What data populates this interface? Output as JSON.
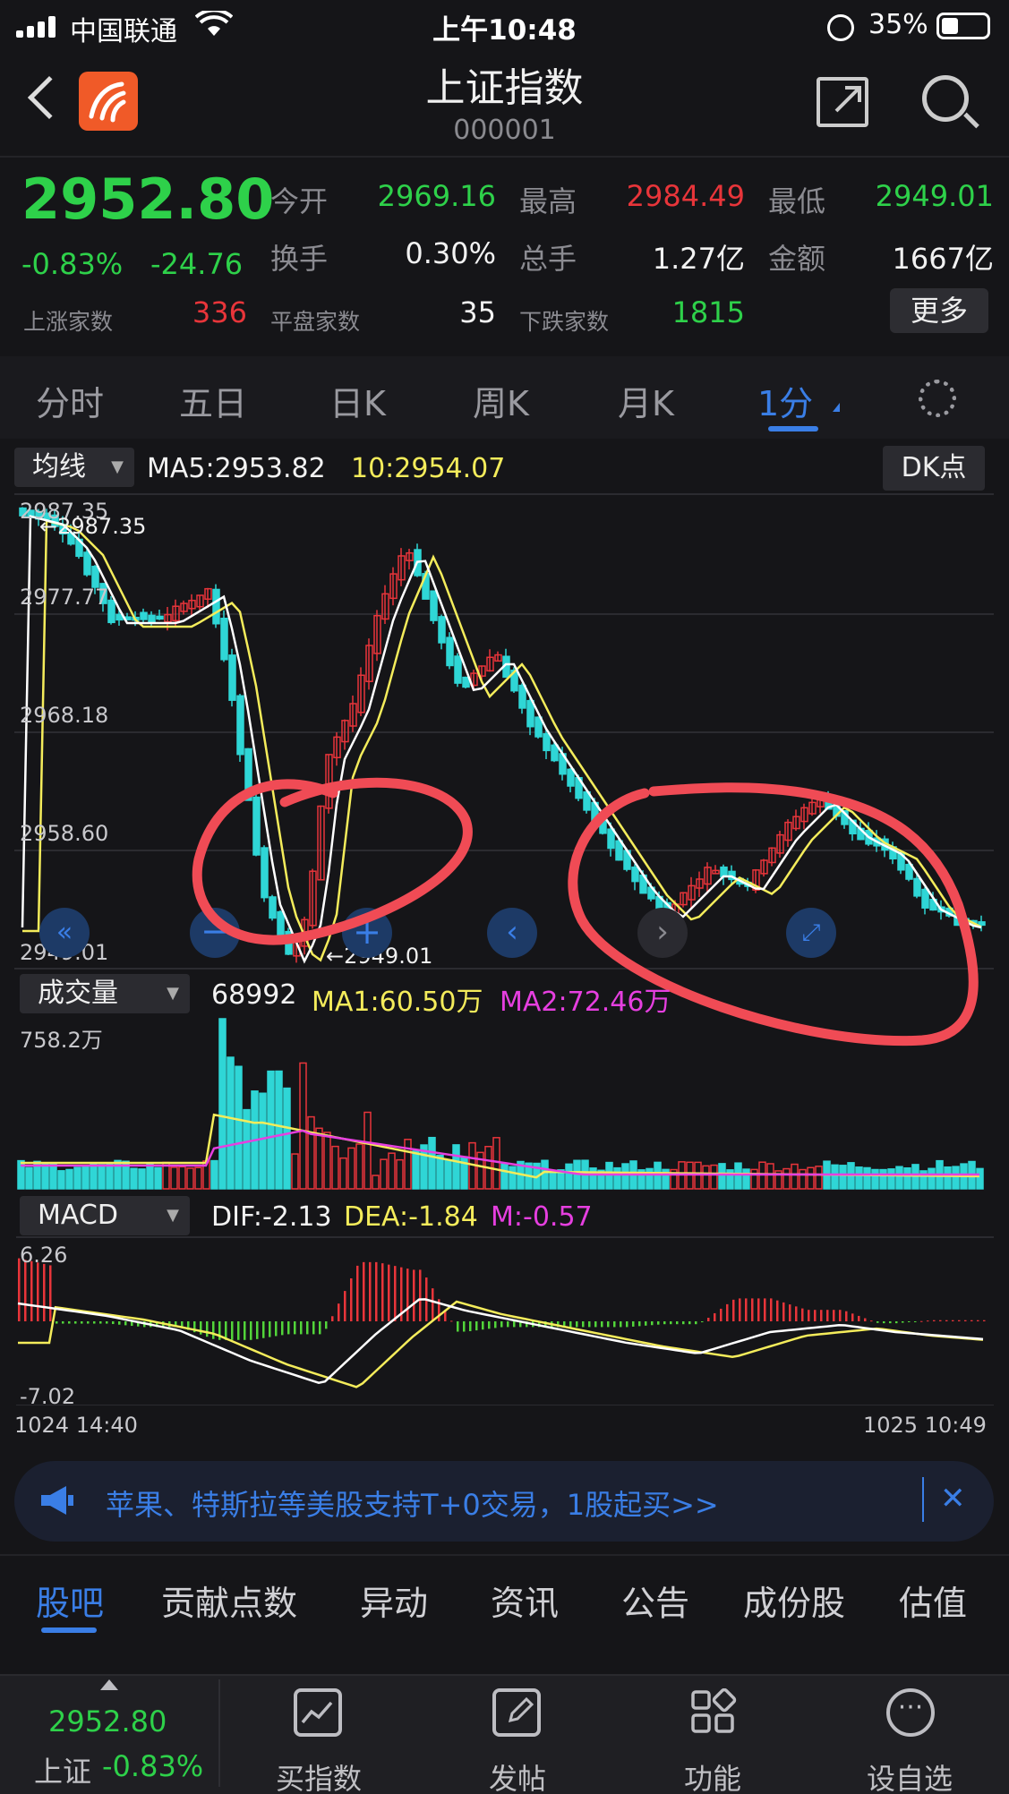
{
  "status_bar": {
    "carrier": "中国联通",
    "time": "上午10:48",
    "battery": "35%"
  },
  "header": {
    "title": "上证指数",
    "code": "000001",
    "icons": [
      "back-icon",
      "app-logo",
      "share-icon",
      "search-icon"
    ]
  },
  "quote": {
    "price": "2952.80",
    "change_pct": "-0.83%",
    "change": "-24.76",
    "open_label": "今开",
    "open": "2969.16",
    "high_label": "最高",
    "high": "2984.49",
    "low_label": "最低",
    "low": "2949.01",
    "turnover_label": "换手",
    "turnover": "0.30%",
    "volume_label": "总手",
    "volume": "1.27亿",
    "amount_label": "金额",
    "amount": "1667亿",
    "up_label": "上涨家数",
    "up": "336",
    "flat_label": "平盘家数",
    "flat": "35",
    "down_label": "下跌家数",
    "down": "1815",
    "more": "更多"
  },
  "tabs": [
    "分时",
    "五日",
    "日K",
    "周K",
    "月K",
    "1分"
  ],
  "active_tab": "1分",
  "price_chart": {
    "indicator": "均线",
    "ma5": "MA5:2953.82",
    "ma10": "10:2954.07",
    "dk_button": "DK点",
    "y_labels": [
      "2987.35",
      "2977.77",
      "2968.18",
      "2958.60",
      "2949.01"
    ],
    "max_annot": "2987.35",
    "min_annot": "2949.01"
  },
  "volume_chart": {
    "indicator": "成交量",
    "vol": "68992",
    "ma1": "MA1:60.50万",
    "ma2": "MA2:72.46万",
    "ymax": "758.2万"
  },
  "macd_chart": {
    "indicator": "MACD",
    "dif": "DIF:-2.13",
    "dea": "DEA:-1.84",
    "m": "M:-0.57",
    "ymax": "6.26",
    "ymin": "-7.02",
    "x_start": "1024 14:40",
    "x_end": "1025 10:49"
  },
  "banner": {
    "text": "苹果、特斯拉等美股支持T+0交易，1股起买>>",
    "close": "✕"
  },
  "bottom_tabs": [
    "股吧",
    "贡献点数",
    "异动",
    "资讯",
    "公告",
    "成份股",
    "估值"
  ],
  "toolbar": {
    "index_price": "2952.80",
    "index_name": "上证",
    "index_change": "-0.83%",
    "buttons": [
      "买指数",
      "发帖",
      "功能",
      "设自选"
    ]
  },
  "colors": {
    "up": "#e8353a",
    "down": "#2ed14a",
    "accent": "#3a7ee6",
    "ma_white": "#ffffff",
    "ma_yellow": "#f4ec5b",
    "candle_down": "#2fd6d6",
    "annotation": "#f04b55"
  }
}
